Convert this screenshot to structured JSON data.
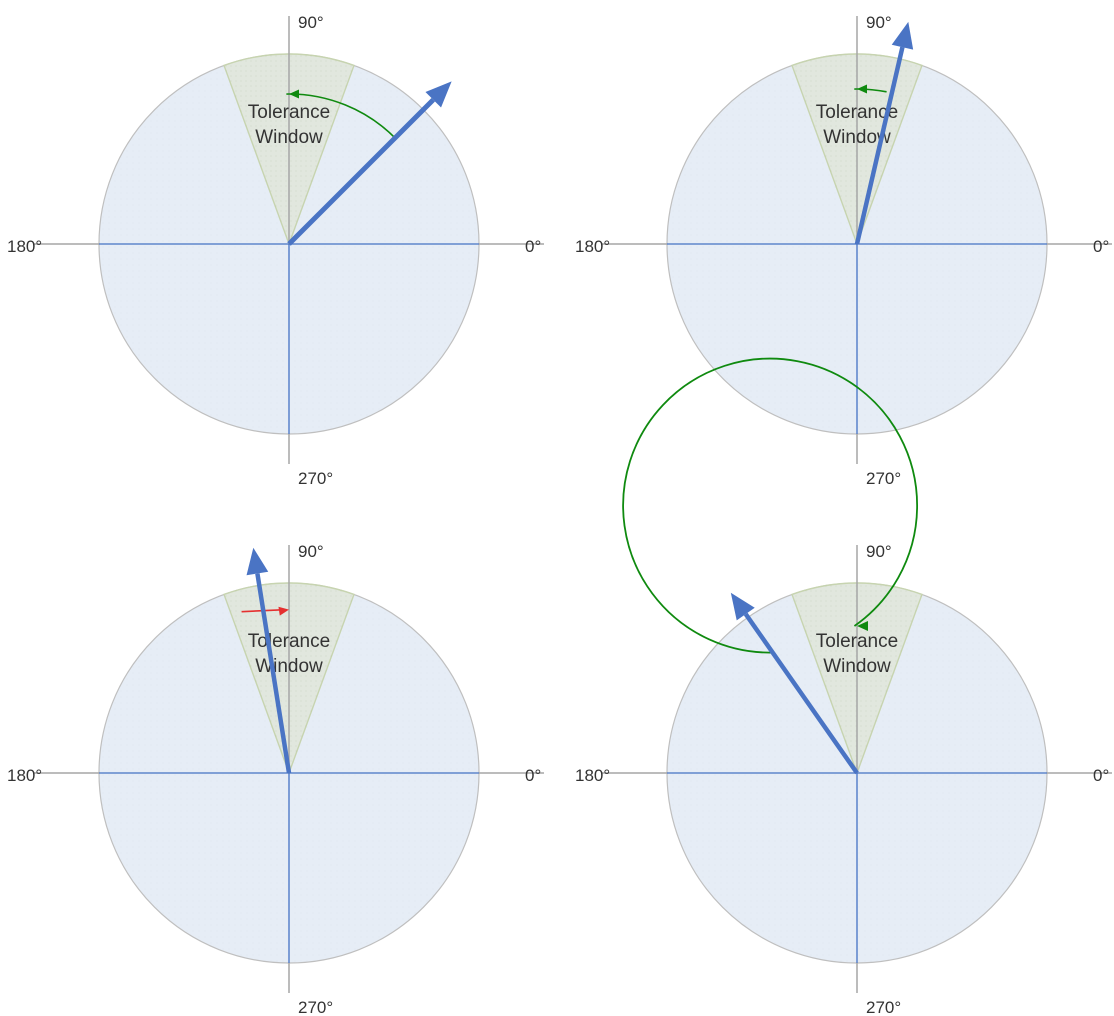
{
  "axis_labels": {
    "deg0": "0°",
    "deg90": "90°",
    "deg180": "180°",
    "deg270": "270°"
  },
  "window_label": {
    "line1": "Tolerance",
    "line2": "Window"
  },
  "colors": {
    "circle_fill": "#e6edf6",
    "circle_stroke": "#bfbfbf",
    "window_fill": "#e1e7de",
    "window_stroke": "#c7d4b0",
    "axis_gray": "#a6a6a6",
    "axis_blue": "#4472c4",
    "vector": "#4a74c4",
    "arc_green": "#0f8a0f",
    "arrow_red": "#e53030",
    "label_text": "#333333"
  },
  "window_angles_deg": {
    "start": 70,
    "end": 110
  },
  "panels": [
    {
      "id": "top-left",
      "vector_angle_deg": 45,
      "show_window_label": true,
      "rotation_arrow": {
        "type": "arc",
        "from_deg": 45,
        "to_deg": 90,
        "color": "arc_green"
      }
    },
    {
      "id": "top-right",
      "vector_angle_deg": 77,
      "show_window_label": true,
      "rotation_arrow": {
        "type": "arc",
        "from_deg": 79,
        "to_deg": 90,
        "color": "arc_green"
      }
    },
    {
      "id": "bottom-left",
      "vector_angle_deg": 99,
      "show_window_label": true,
      "rotation_arrow": {
        "type": "straight",
        "from_deg": 110,
        "to_deg": 90,
        "color": "arrow_red"
      }
    },
    {
      "id": "bottom-right",
      "vector_angle_deg": 125,
      "show_window_label": true,
      "rotation_arrow": {
        "type": "loop",
        "from_deg": 125,
        "to_deg": 90,
        "color": "arc_green"
      }
    }
  ]
}
